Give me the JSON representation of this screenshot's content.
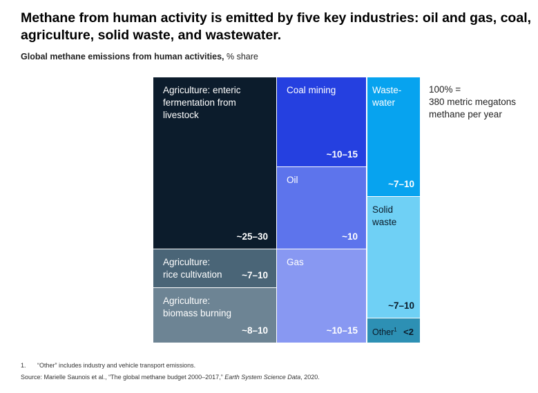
{
  "title": "Methane from human activity is emitted by five key industries: oil and gas, coal, agriculture, solid waste, and wastewater.",
  "subtitle": {
    "bold": "Global methane emissions from human activities,",
    "rest": " % share"
  },
  "total_note": "100% =\n380 metric megatons\nmethane per year",
  "chart_data": {
    "type": "treemap",
    "title": "Global methane emissions from human activities, % share",
    "total": "100% = 380 metric megatons methane per year",
    "items": [
      {
        "id": "enteric",
        "label": "Agriculture: enteric\nfermentation from\nlivestock",
        "value": "~25–30",
        "color": "#0c1c2c"
      },
      {
        "id": "rice",
        "label": "Agriculture:\nrice cultivation",
        "value": "~7–10",
        "color": "#4a6577"
      },
      {
        "id": "biomass",
        "label": "Agriculture:\nbiomass burning",
        "value": "~8–10",
        "color": "#6d8494"
      },
      {
        "id": "coal",
        "label": "Coal mining",
        "value": "~10–15",
        "color": "#2540e0"
      },
      {
        "id": "oil",
        "label": "Oil",
        "value": "~10",
        "color": "#5d74ec"
      },
      {
        "id": "gas",
        "label": "Gas",
        "value": "~10–15",
        "color": "#8898f2"
      },
      {
        "id": "wastewater",
        "label": "Waste-\nwater",
        "value": "~7–10",
        "color": "#07a3ef"
      },
      {
        "id": "solid",
        "label": "Solid\nwaste",
        "value": "~7–10",
        "color": "#6fd0f5"
      },
      {
        "id": "other",
        "label": "Other",
        "sup": "1",
        "value": "<2",
        "color": "#2d90b4"
      }
    ]
  },
  "footnote": {
    "num": "1.",
    "text": "“Other” includes industry and vehicle transport emissions."
  },
  "source": {
    "prefix": "Source: Marielle Saunois et al., “The global methane budget 2000–2017,” ",
    "journal": "Earth System Science Data",
    "suffix": ", 2020."
  }
}
